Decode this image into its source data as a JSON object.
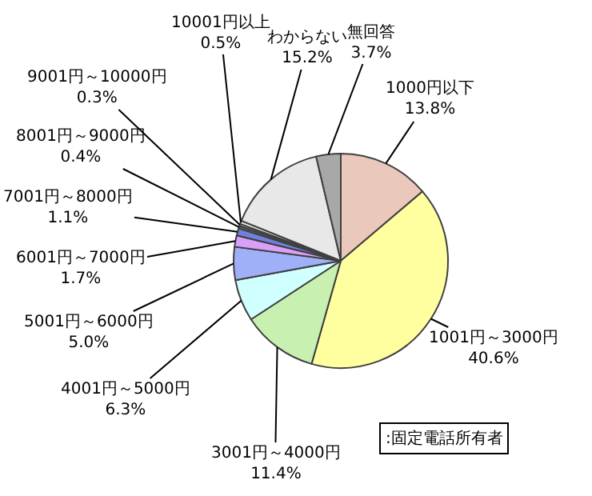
{
  "chart_data": {
    "type": "pie",
    "categories": [
      "1000円以下",
      "1001円～3000円",
      "3001円～4000円",
      "4001円～5000円",
      "5001円～6000円",
      "6001円～7000円",
      "7001円～8000円",
      "8001円～9000円",
      "9001円～10000円",
      "10001円以上",
      "わからない",
      "無回答"
    ],
    "values": [
      13.8,
      40.6,
      11.4,
      6.3,
      5.0,
      1.7,
      1.1,
      0.4,
      0.3,
      0.5,
      15.2,
      3.7
    ],
    "value_labels": [
      "13.8%",
      "40.6%",
      "11.4%",
      "6.3%",
      "5.0%",
      "1.7%",
      "1.1%",
      "0.4%",
      "0.3%",
      "0.5%",
      "15.2%",
      "3.7%"
    ],
    "colors": [
      "#ebc8bc",
      "#ffffa0",
      "#c8f0b0",
      "#d0ffff",
      "#a0b0f8",
      "#d8a0f8",
      "#7080e0",
      "#606060",
      "#ffffd0",
      "#e0e0e0",
      "#e8e8e8",
      "#a8a8a8"
    ],
    "annotations": [
      ":固定電話所有者"
    ],
    "legend": false
  }
}
